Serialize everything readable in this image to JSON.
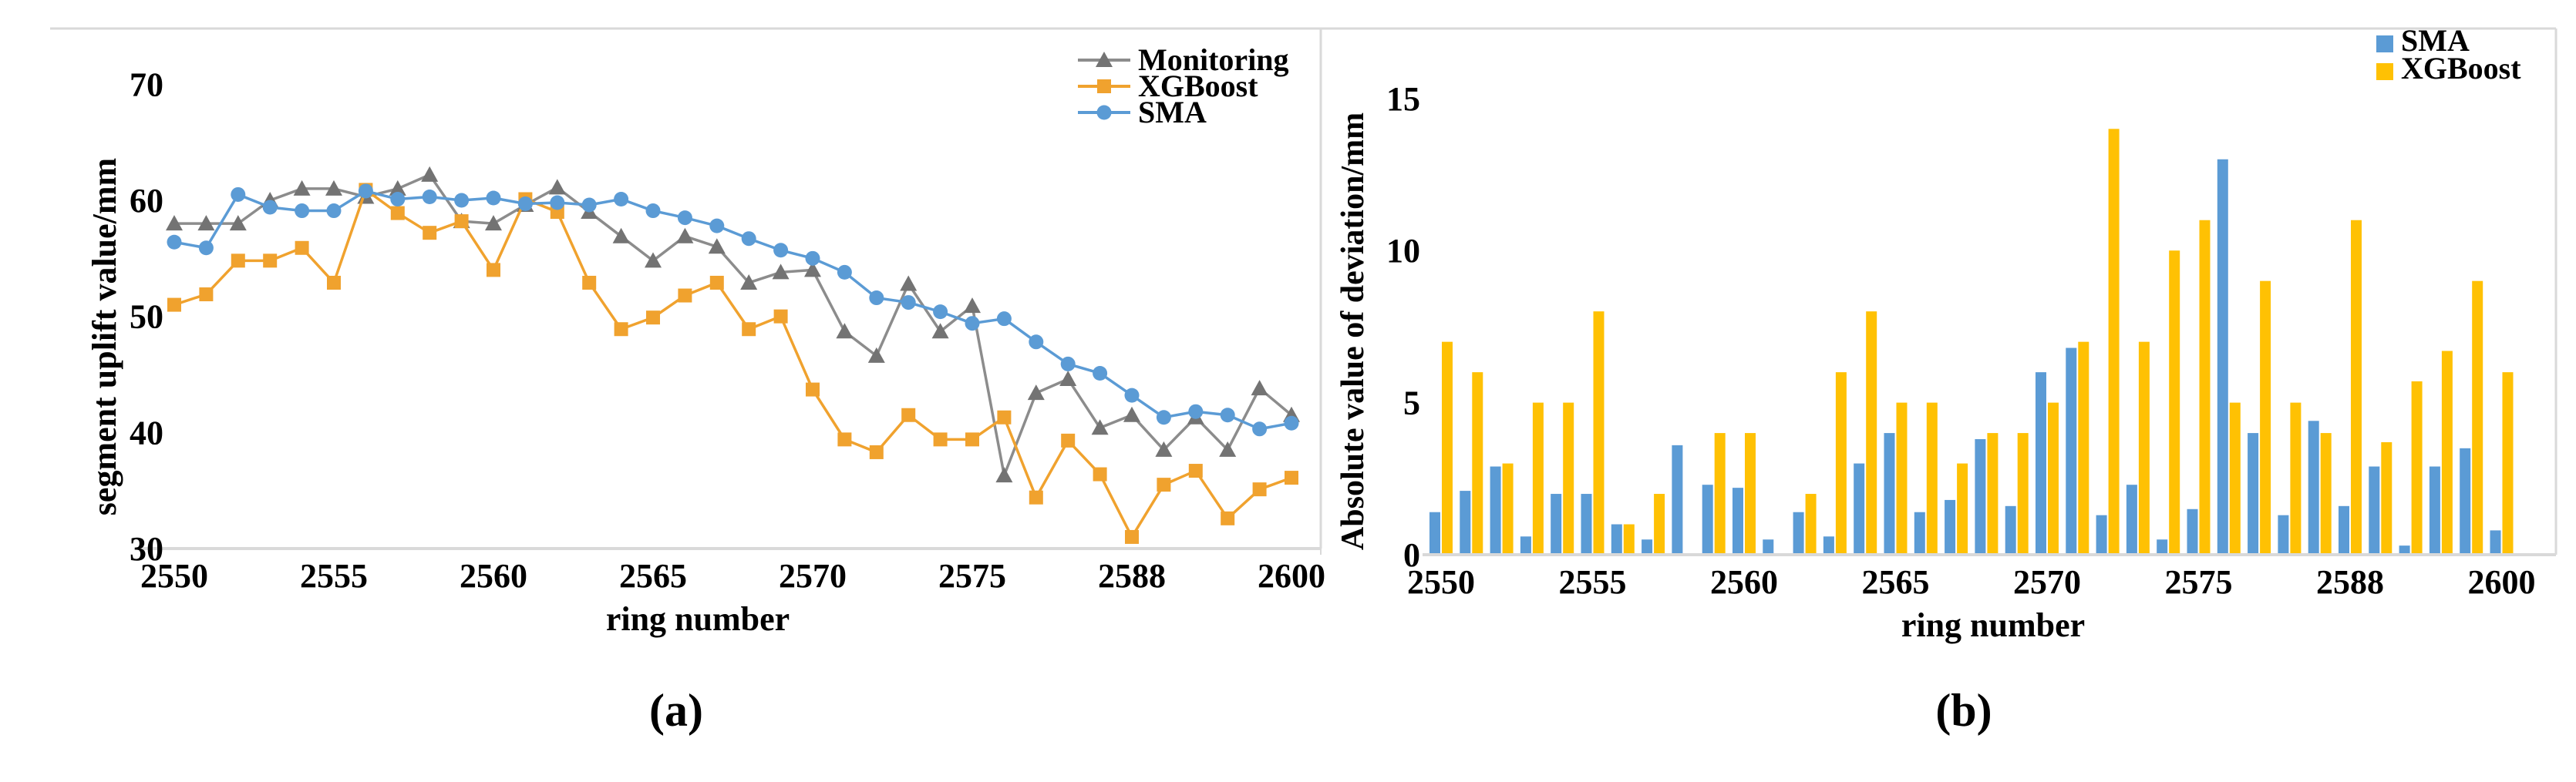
{
  "figure": {
    "caption_a": "(a)",
    "caption_b": "(b)"
  },
  "colors": {
    "blue": "#5B9BD5",
    "orange_line": "#F0A22E",
    "bar_yellow": "#FFC103",
    "gray_line": "#8C8C8C",
    "gray_marker": "#737373",
    "axis_gray": "#D9D9D9",
    "text": "#000000"
  },
  "chart_data": [
    {
      "type": "line",
      "title": "",
      "xlabel": "ring number",
      "ylabel": "segment uplift value/mm",
      "ylim": [
        30,
        74.8
      ],
      "yticks": [
        30,
        40,
        50,
        60,
        70
      ],
      "x_tick_labels": [
        "2550",
        "2555",
        "2560",
        "2565",
        "2570",
        "2575",
        "2588",
        "2600"
      ],
      "x_tick_indices": [
        0,
        5,
        10,
        15,
        20,
        25,
        30,
        35
      ],
      "n_points": 36,
      "grid": false,
      "legend_position": "top-right-inside",
      "legend": [
        "Monitoring",
        "XGBoost",
        "SMA"
      ],
      "series": [
        {
          "name": "Monitoring",
          "marker": "triangle",
          "color": "#8C8C8C",
          "marker_color": "#737373",
          "values": [
            58.0,
            58.0,
            58.0,
            60.0,
            61.0,
            61.0,
            60.3,
            61.0,
            62.2,
            58.2,
            58.0,
            59.6,
            61.1,
            59.0,
            56.9,
            54.8,
            56.9,
            56.0,
            52.9,
            53.8,
            54.0,
            48.7,
            46.6,
            52.8,
            48.7,
            50.9,
            36.3,
            43.4,
            44.6,
            40.4,
            41.5,
            38.5,
            41.3,
            38.5,
            43.8,
            41.5
          ]
        },
        {
          "name": "XGBoost",
          "marker": "square",
          "color": "#F0A22E",
          "marker_color": "#F0A22E",
          "values": [
            51.0,
            51.9,
            54.8,
            54.8,
            55.9,
            52.9,
            60.9,
            58.9,
            57.2,
            58.2,
            54.0,
            60.1,
            59.0,
            52.9,
            48.9,
            49.9,
            51.8,
            52.9,
            48.9,
            50.0,
            43.7,
            39.4,
            38.3,
            41.5,
            39.4,
            39.4,
            41.3,
            34.4,
            39.3,
            36.4,
            31.0,
            35.5,
            36.7,
            32.6,
            35.1,
            36.1
          ]
        },
        {
          "name": "SMA",
          "marker": "circle",
          "color": "#5B9BD5",
          "marker_color": "#5B9BD5",
          "values": [
            56.4,
            55.9,
            60.5,
            59.4,
            59.1,
            59.1,
            60.8,
            60.1,
            60.3,
            60.0,
            60.2,
            59.7,
            59.8,
            59.6,
            60.1,
            59.1,
            58.5,
            57.8,
            56.7,
            55.7,
            55.0,
            53.8,
            51.6,
            51.2,
            50.4,
            49.4,
            49.8,
            47.8,
            45.9,
            45.1,
            43.2,
            41.3,
            41.8,
            41.5,
            40.3,
            40.8
          ]
        }
      ]
    },
    {
      "type": "bar",
      "title": "",
      "xlabel": "ring number",
      "ylabel": "Absolute value of deviation/mm",
      "ylim": [
        0,
        17.3
      ],
      "yticks": [
        0,
        5,
        10,
        15
      ],
      "x_tick_labels": [
        "2550",
        "2555",
        "2560",
        "2565",
        "2570",
        "2575",
        "2588",
        "2600"
      ],
      "x_tick_indices": [
        0,
        5,
        10,
        15,
        20,
        25,
        30,
        35
      ],
      "n_points": 36,
      "grid": false,
      "legend_position": "top-right-inside",
      "legend": [
        "SMA",
        "XGBoost"
      ],
      "series": [
        {
          "name": "SMA",
          "color": "#5B9BD5",
          "values": [
            1.4,
            2.1,
            2.9,
            0.6,
            2.0,
            2.0,
            1.0,
            0.5,
            3.6,
            2.3,
            2.2,
            0.5,
            1.4,
            0.6,
            3.0,
            4.0,
            1.4,
            1.8,
            3.8,
            1.6,
            6.0,
            6.8,
            1.3,
            2.3,
            0.5,
            1.5,
            13.0,
            4.0,
            1.3,
            4.4,
            1.6,
            2.9,
            0.3,
            2.9,
            3.5,
            0.8
          ]
        },
        {
          "name": "XGBoost",
          "color": "#FFC103",
          "values": [
            7.0,
            6.0,
            3.0,
            5.0,
            5.0,
            8.0,
            1.0,
            2.0,
            0.0,
            4.0,
            4.0,
            0.0,
            2.0,
            6.0,
            8.0,
            5.0,
            5.0,
            3.0,
            4.0,
            4.0,
            5.0,
            7.0,
            14.0,
            7.0,
            10.0,
            11.0,
            5.0,
            9.0,
            5.0,
            4.0,
            11.0,
            3.7,
            5.7,
            6.7,
            9.0,
            6.0
          ]
        }
      ]
    }
  ]
}
